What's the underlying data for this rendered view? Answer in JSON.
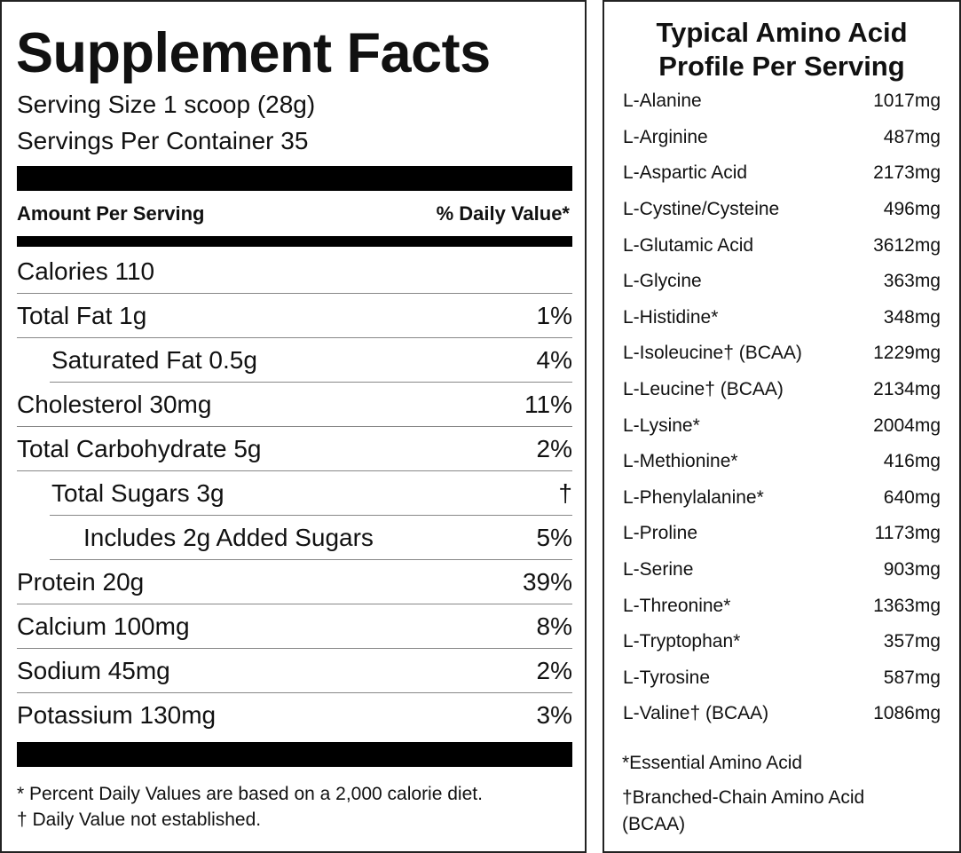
{
  "supplement_facts": {
    "title": "Supplement Facts",
    "serving_size": "Serving Size 1 scoop (28g)",
    "servings_per_container": "Servings Per Container 35",
    "amount_header": "Amount Per Serving",
    "dv_header": "% Daily Value*",
    "rows": [
      {
        "name": "Calories 110"
      },
      {
        "name": "Total Fat 1g",
        "dv": "1%"
      },
      {
        "name": "Saturated Fat 0.5g",
        "dv": "4%"
      },
      {
        "name": "Cholesterol 30mg",
        "dv": "11%"
      },
      {
        "name": "Total Carbohydrate 5g",
        "dv": "2%"
      },
      {
        "name": "Total Sugars 3g",
        "dv": "†"
      },
      {
        "name": "Includes 2g Added Sugars",
        "dv": "5%"
      },
      {
        "name": "Protein 20g",
        "dv": "39%"
      },
      {
        "name": "Calcium 100mg",
        "dv": "8%"
      },
      {
        "name": "Sodium 45mg",
        "dv": "2%"
      },
      {
        "name": "Potassium 130mg",
        "dv": "3%"
      }
    ],
    "footnotes": [
      "* Percent Daily Values are based on a 2,000 calorie diet.",
      "† Daily Value not established."
    ]
  },
  "amino_profile": {
    "title": "Typical Amino Acid Profile Per Serving",
    "rows": [
      {
        "name": "L-Alanine",
        "amount": "1017mg"
      },
      {
        "name": "L-Arginine",
        "amount": "487mg"
      },
      {
        "name": "L-Aspartic Acid",
        "amount": "2173mg"
      },
      {
        "name": "L-Cystine/Cysteine",
        "amount": "496mg"
      },
      {
        "name": "L-Glutamic Acid",
        "amount": "3612mg"
      },
      {
        "name": "L-Glycine",
        "amount": "363mg"
      },
      {
        "name": "L-Histidine*",
        "amount": "348mg"
      },
      {
        "name": "L-Isoleucine† (BCAA)",
        "amount": "1229mg"
      },
      {
        "name": "L-Leucine† (BCAA)",
        "amount": "2134mg"
      },
      {
        "name": "L-Lysine*",
        "amount": "2004mg"
      },
      {
        "name": "L-Methionine*",
        "amount": "416mg"
      },
      {
        "name": "L-Phenylalanine*",
        "amount": "640mg"
      },
      {
        "name": "L-Proline",
        "amount": "1173mg"
      },
      {
        "name": "L-Serine",
        "amount": "903mg"
      },
      {
        "name": "L-Threonine*",
        "amount": "1363mg"
      },
      {
        "name": "L-Tryptophan*",
        "amount": "357mg"
      },
      {
        "name": "L-Tyrosine",
        "amount": "587mg"
      },
      {
        "name": "L-Valine† (BCAA)",
        "amount": "1086mg"
      }
    ],
    "footnotes": [
      "*Essential Amino Acid",
      "†Branched-Chain Amino Acid (BCAA)"
    ]
  }
}
